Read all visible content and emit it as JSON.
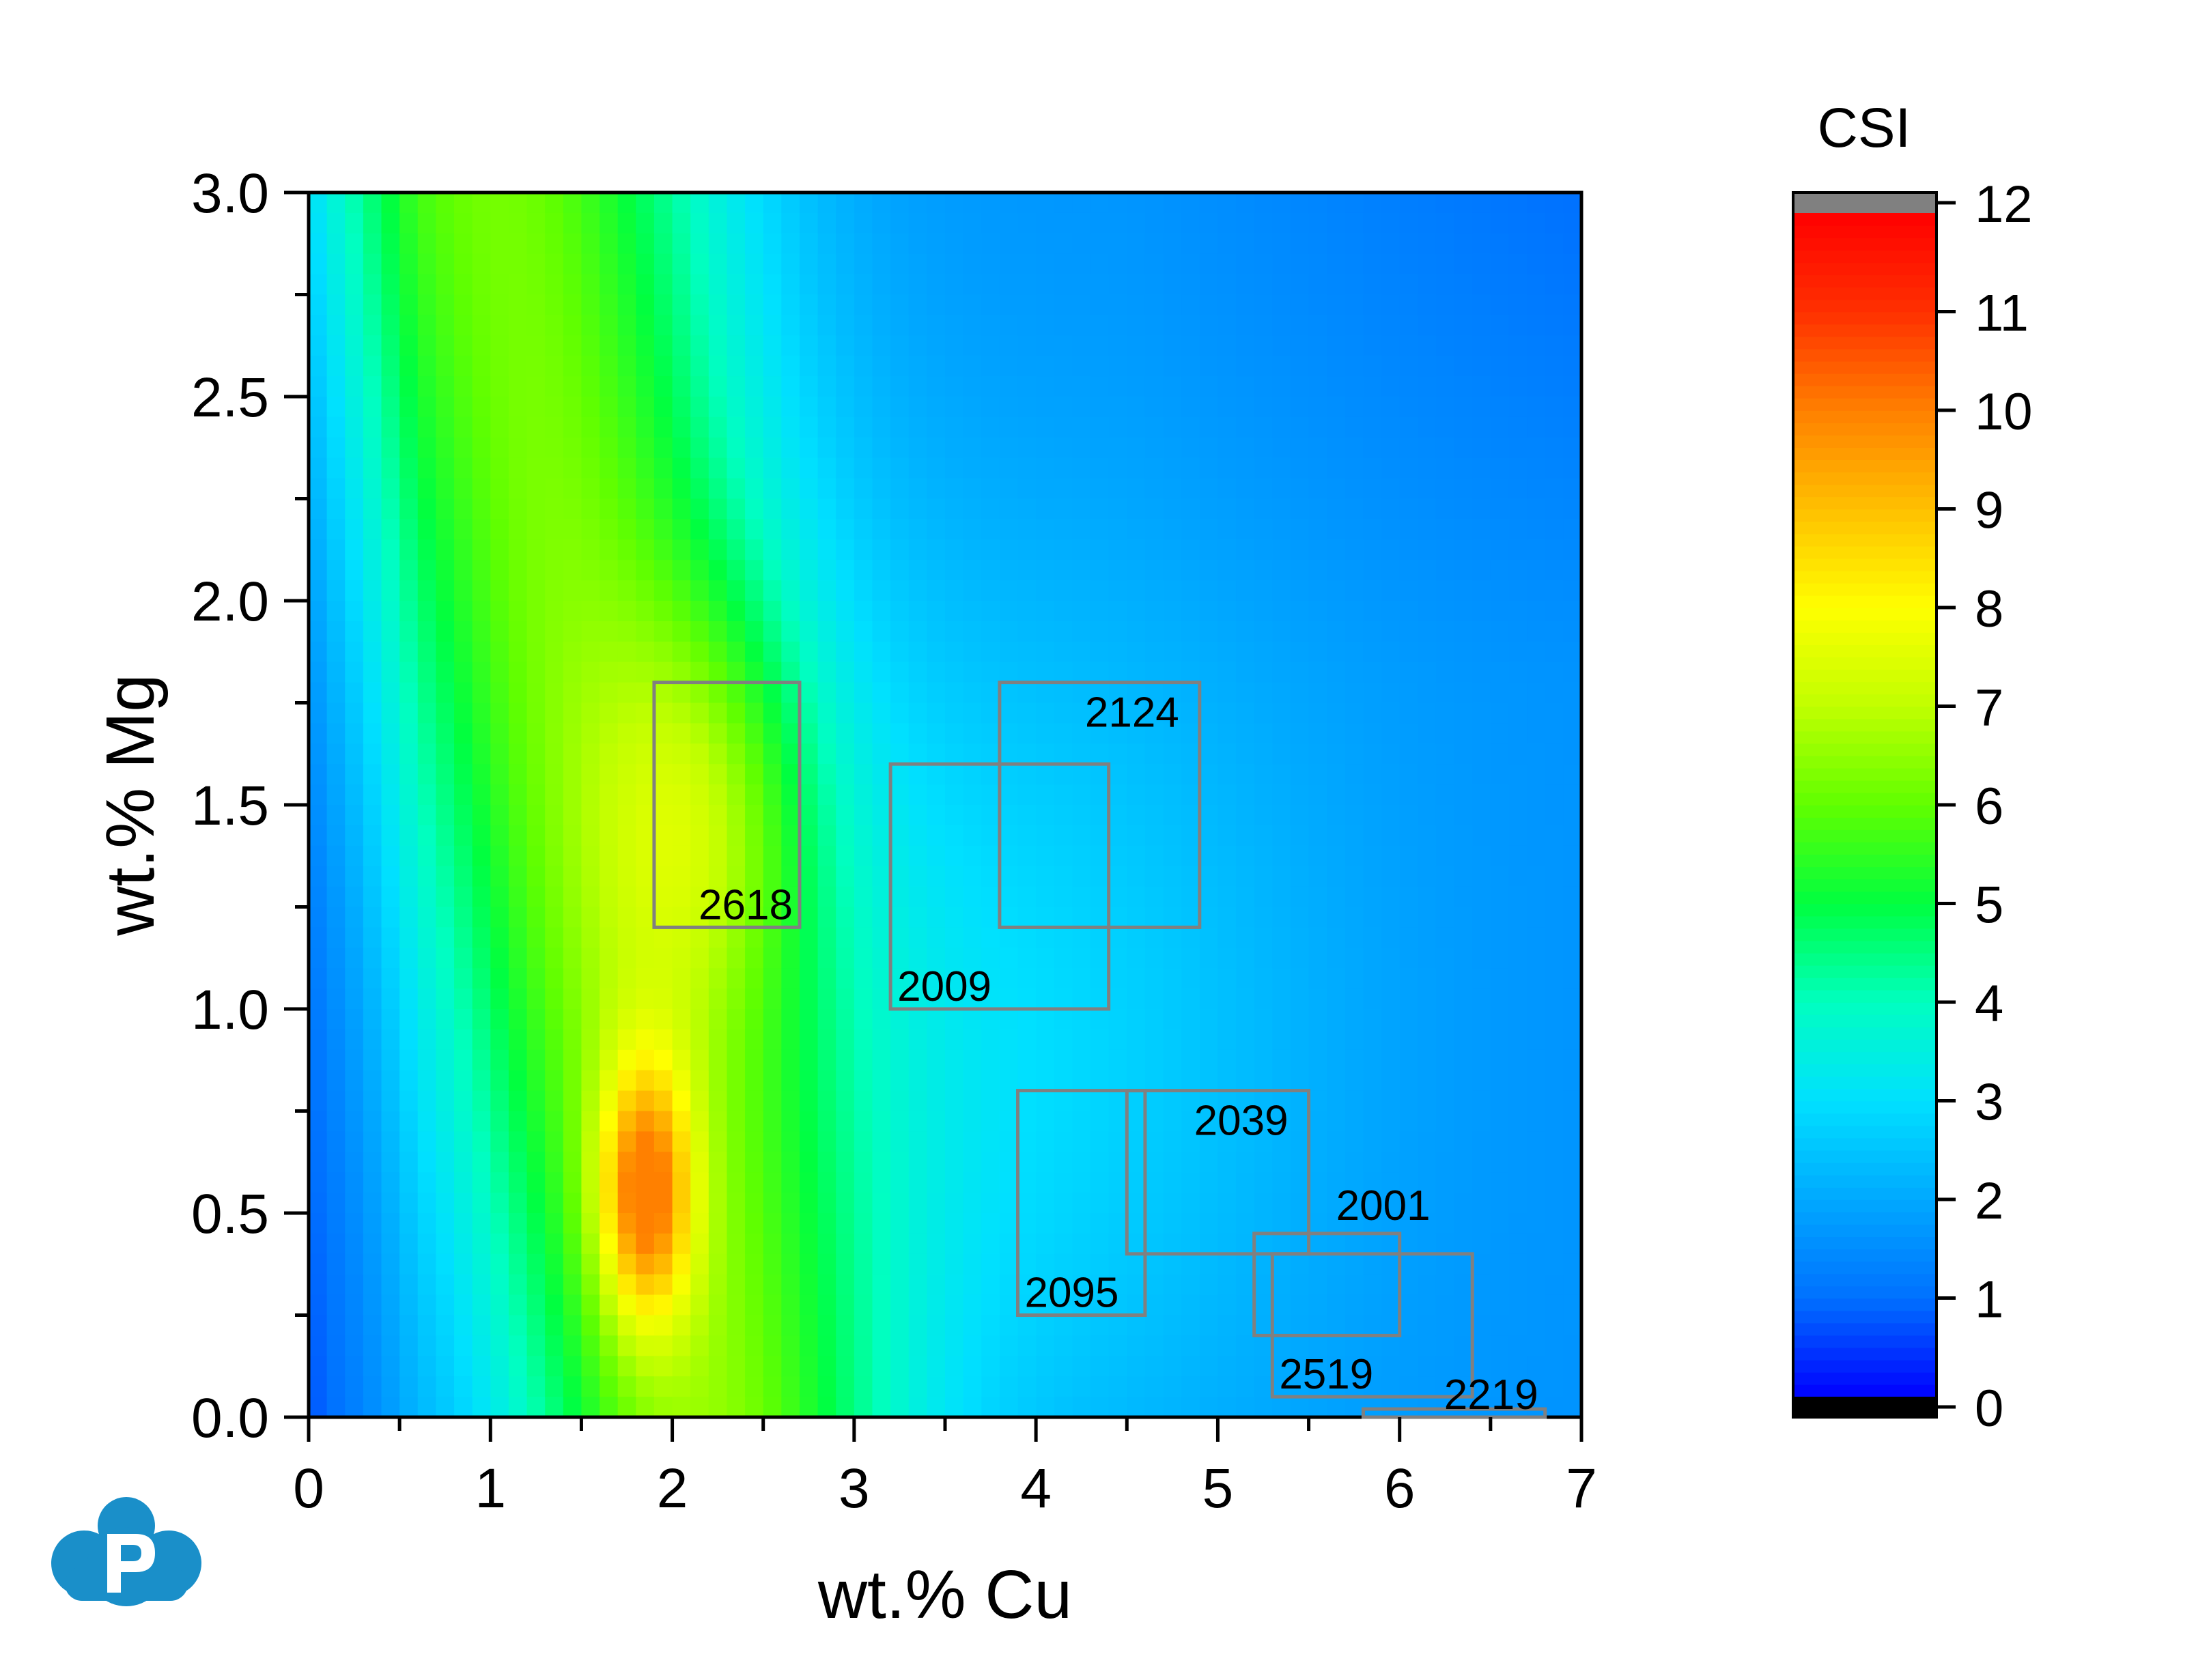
{
  "chart_data": {
    "type": "heatmap",
    "title": "",
    "xlabel": "wt.% Cu",
    "ylabel": "wt.% Mg",
    "xlim": [
      0,
      7
    ],
    "ylim": [
      0,
      3.0
    ],
    "x_ticks": [
      "0",
      "1",
      "2",
      "3",
      "4",
      "5",
      "6",
      "7"
    ],
    "y_ticks": [
      "0.0",
      "0.5",
      "1.0",
      "1.5",
      "2.0",
      "2.5",
      "3.0"
    ],
    "colorbar": {
      "title": "CSI",
      "min": 0,
      "max": 12,
      "ticks": [
        "0",
        "1",
        "2",
        "3",
        "4",
        "5",
        "6",
        "7",
        "8",
        "9",
        "10",
        "11",
        "12"
      ],
      "under_color": "#000000",
      "over_color": "#808080"
    },
    "colormap": [
      "#0000ff",
      "#0070ff",
      "#00a8ff",
      "#00e0ff",
      "#00ffc0",
      "#00ff40",
      "#60ff00",
      "#c0ff00",
      "#ffff00",
      "#ffc000",
      "#ff8000",
      "#ff3000",
      "#ff0000"
    ],
    "hotspots": [
      {
        "x": 1.85,
        "y": 0.55,
        "value": 9.2
      },
      {
        "x": 1.6,
        "y": 2.3,
        "value": 6.0
      },
      {
        "x": 2.2,
        "y": 1.5,
        "value": 7.5
      }
    ],
    "alloy_boxes": [
      {
        "name": "2618",
        "cu": [
          1.9,
          2.7
        ],
        "mg": [
          1.2,
          1.8
        ]
      },
      {
        "name": "2124",
        "cu": [
          3.8,
          4.9
        ],
        "mg": [
          1.2,
          1.8
        ]
      },
      {
        "name": "2009",
        "cu": [
          3.2,
          4.4
        ],
        "mg": [
          1.0,
          1.6
        ]
      },
      {
        "name": "2039",
        "cu": [
          4.5,
          5.5
        ],
        "mg": [
          0.4,
          0.8
        ]
      },
      {
        "name": "2095",
        "cu": [
          3.9,
          4.6
        ],
        "mg": [
          0.25,
          0.8
        ]
      },
      {
        "name": "2001",
        "cu": [
          5.2,
          6.0
        ],
        "mg": [
          0.2,
          0.45
        ]
      },
      {
        "name": "2519",
        "cu": [
          5.3,
          6.4
        ],
        "mg": [
          0.05,
          0.4
        ]
      },
      {
        "name": "2219",
        "cu": [
          5.8,
          6.8
        ],
        "mg": [
          0.0,
          0.02
        ]
      }
    ]
  },
  "colors": {
    "box_stroke": "#808080",
    "logo": "#1a8fc9"
  },
  "logo_icon": "cloud-p-logo"
}
